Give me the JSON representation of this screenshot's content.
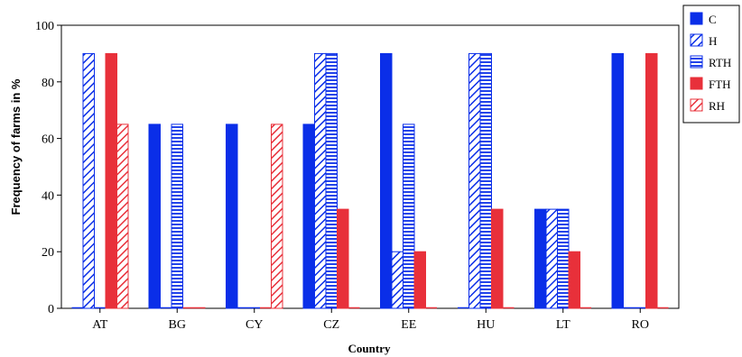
{
  "chart_data": {
    "type": "bar",
    "title": "",
    "xlabel": "Country",
    "ylabel": "Frequency of farms in %",
    "ylim": [
      0,
      100
    ],
    "yticks": [
      0,
      20,
      40,
      60,
      80,
      100
    ],
    "grid": false,
    "legend_position": "right",
    "categories": [
      "AT",
      "BG",
      "CY",
      "CZ",
      "EE",
      "HU",
      "LT",
      "RO"
    ],
    "series": [
      {
        "name": "C",
        "color": "#0a2ee8",
        "pattern": "solid",
        "values": [
          0,
          65,
          65,
          65,
          90,
          0,
          35,
          90
        ]
      },
      {
        "name": "H",
        "color": "#0a2ee8",
        "pattern": "diagonal",
        "values": [
          90,
          0,
          0,
          90,
          20,
          90,
          35,
          0
        ]
      },
      {
        "name": "RTH",
        "color": "#0a2ee8",
        "pattern": "horizontal",
        "values": [
          0,
          65,
          0,
          90,
          65,
          90,
          35,
          0
        ]
      },
      {
        "name": "FTH",
        "color": "#e8303a",
        "pattern": "solid",
        "values": [
          90,
          0,
          0,
          35,
          20,
          35,
          20,
          90
        ]
      },
      {
        "name": "RH",
        "color": "#e8303a",
        "pattern": "diagonal",
        "values": [
          65,
          0,
          65,
          0,
          0,
          0,
          0,
          0
        ]
      }
    ]
  }
}
